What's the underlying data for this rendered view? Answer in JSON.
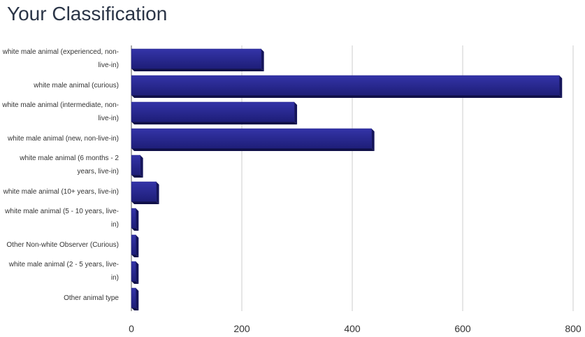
{
  "chart_data": {
    "type": "bar",
    "orientation": "horizontal",
    "title": "Your Classification",
    "categories": [
      "white male animal (experienced, non-live-in)",
      "white male animal (curious)",
      "white male animal (intermediate, non-live-in)",
      "white male animal (new, non-live-in)",
      "white male animal (6 months - 2 years, live-in)",
      "white male animal (10+ years, live-in)",
      "white male animal (5 - 10 years, live-in)",
      "Other Non-white Observer (Curious)",
      "white male animal (2 - 5 years, live-in)",
      "Other animal type"
    ],
    "values": [
      235,
      775,
      295,
      435,
      16,
      45,
      8,
      8,
      8,
      8
    ],
    "color": "#25258a",
    "xlim": [
      0,
      800
    ],
    "xticks": [
      0,
      200,
      400,
      600,
      800
    ],
    "grid": true
  }
}
